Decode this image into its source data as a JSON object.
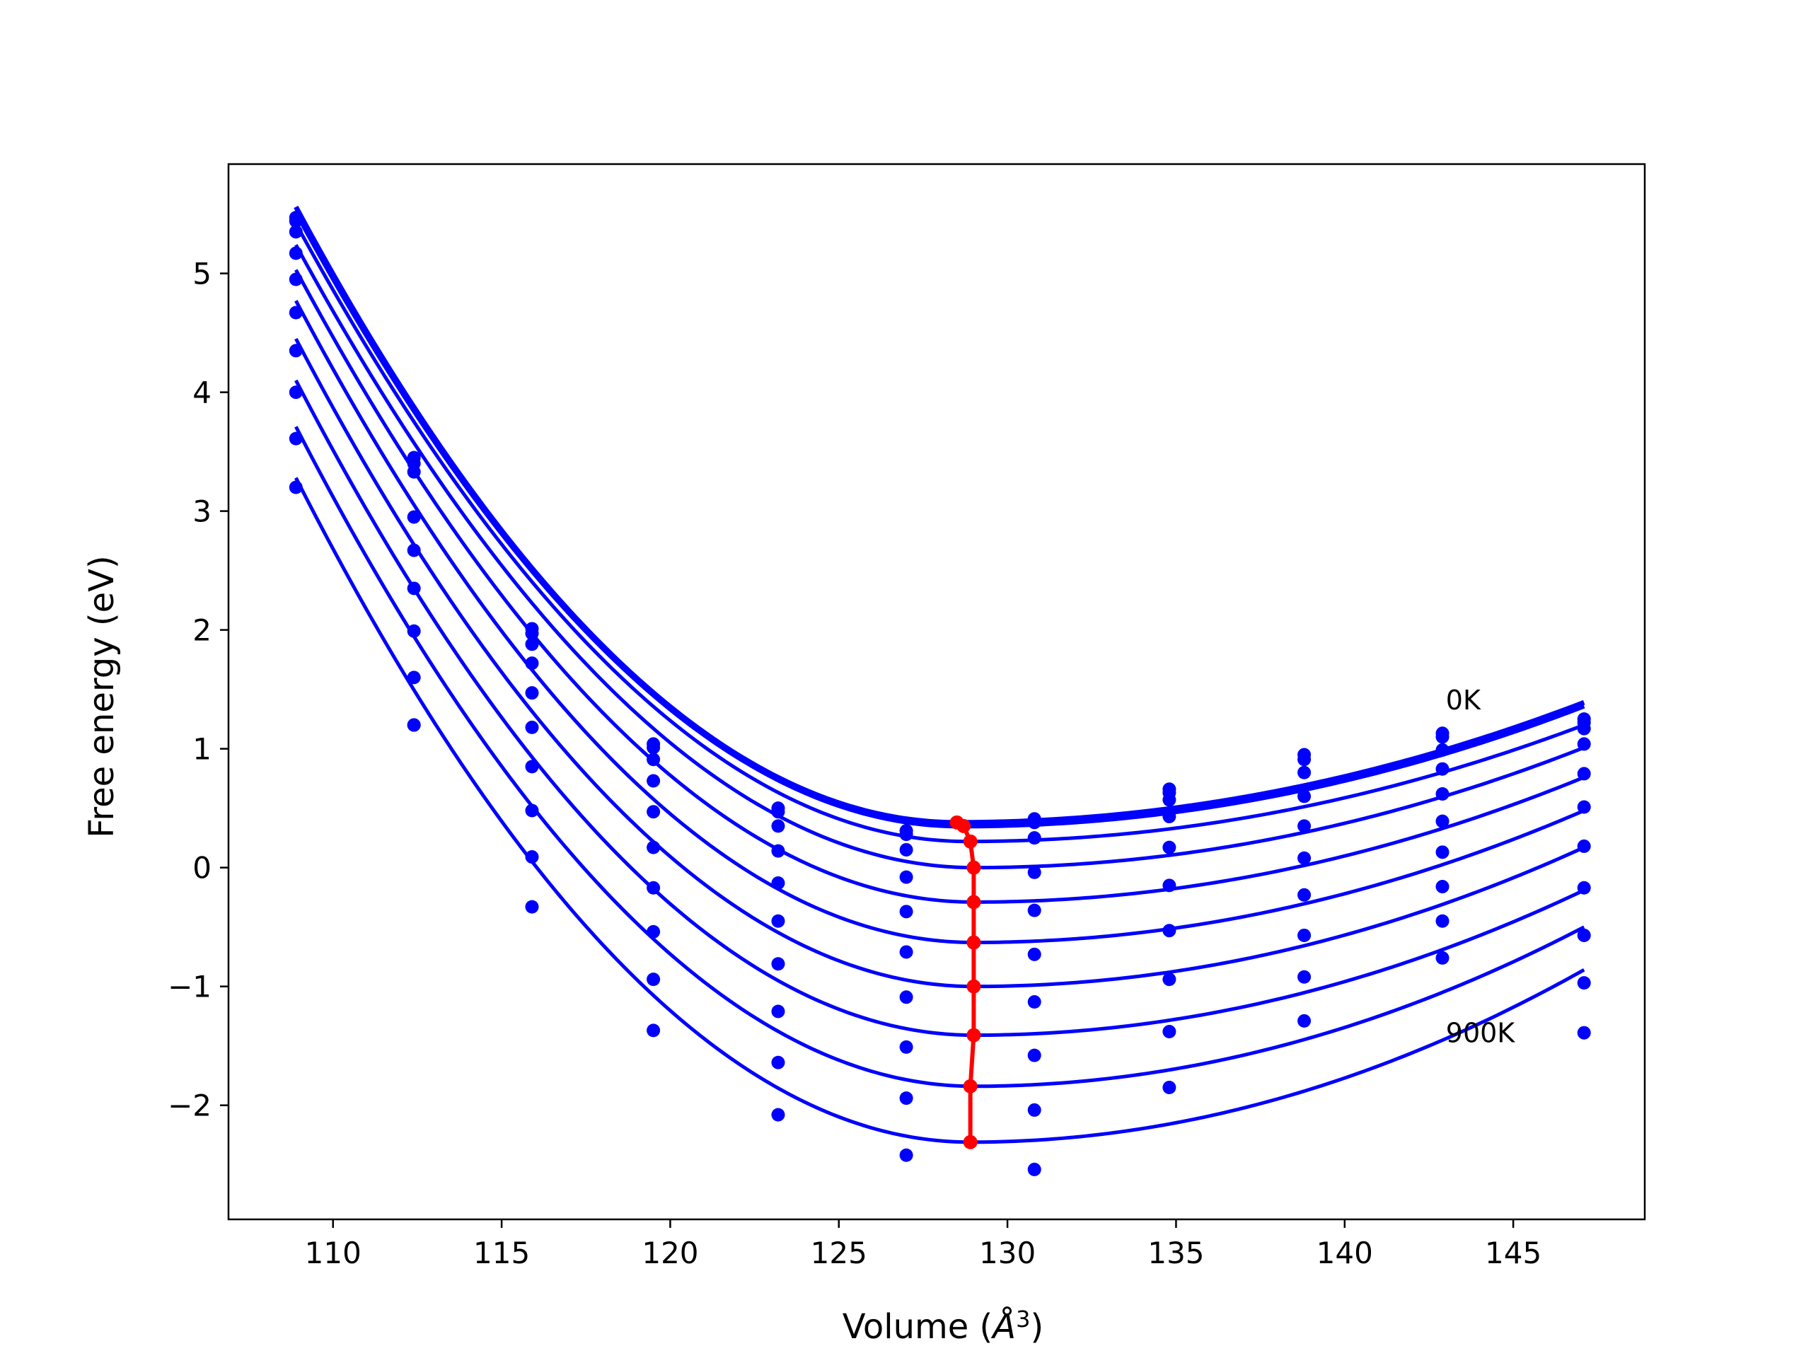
{
  "chart_data": {
    "type": "line",
    "title": "",
    "xlabel": "Volume (",
    "xlabel_symbol": "Å",
    "xlabel_exp": "3",
    "xlabel_close": ")",
    "ylabel": "Free energy (eV)",
    "xlim": [
      106.9,
      148.9
    ],
    "ylim": [
      -2.96,
      5.92
    ],
    "xticks": [
      110,
      115,
      120,
      125,
      130,
      135,
      140,
      145
    ],
    "xtick_labels": [
      "110",
      "115",
      "120",
      "125",
      "130",
      "135",
      "140",
      "145"
    ],
    "yticks": [
      -2,
      -1,
      0,
      1,
      2,
      3,
      4,
      5
    ],
    "ytick_labels": [
      "−2",
      "−1",
      "0",
      "1",
      "2",
      "3",
      "4",
      "5"
    ],
    "grid": false,
    "legend": "none",
    "colors": {
      "curves": "#0000ff",
      "minimum": "#ff0000"
    },
    "volumes": [
      108.9,
      112.4,
      115.9,
      119.5,
      123.2,
      127.0,
      130.8,
      134.8,
      138.8,
      142.9,
      147.1
    ],
    "series": [
      {
        "temp": 0,
        "scatter": [
          5.47,
          3.45,
          2.01,
          1.04,
          0.5,
          0.31,
          0.41,
          0.66,
          0.95,
          1.13,
          1.25
        ],
        "fit": {
          "v0": 128.5,
          "e0": 0.38,
          "left_end": 5.56,
          "right_end": 1.39
        }
      },
      {
        "temp": 100,
        "scatter": [
          5.44,
          3.4,
          1.97,
          1.01,
          0.47,
          0.28,
          0.38,
          0.63,
          0.91,
          1.1,
          1.22
        ],
        "fit": {
          "v0": 128.6,
          "e0": 0.35,
          "left_end": 5.52,
          "right_end": 1.36
        }
      },
      {
        "temp": 200,
        "scatter": [
          5.35,
          3.33,
          1.88,
          0.91,
          0.35,
          0.15,
          0.25,
          0.57,
          0.8,
          0.99,
          1.17
        ],
        "fit": {
          "v0": 128.8,
          "e0": 0.22,
          "left_end": 5.42,
          "right_end": 1.2
        }
      },
      {
        "temp": 300,
        "scatter": [
          5.17,
          2.95,
          1.72,
          0.73,
          0.14,
          -0.08,
          -0.04,
          0.43,
          0.6,
          0.83,
          1.04
        ],
        "fit": {
          "v0": 129.0,
          "e0": 0.0,
          "left_end": 5.24,
          "right_end": 1.01
        }
      },
      {
        "temp": 400,
        "scatter": [
          4.95,
          2.67,
          1.47,
          0.47,
          -0.13,
          -0.37,
          -0.36,
          0.17,
          0.35,
          0.62,
          0.79
        ],
        "fit": {
          "v0": 129.0,
          "e0": -0.29,
          "left_end": 5.03,
          "right_end": 0.76
        }
      },
      {
        "temp": 500,
        "scatter": [
          4.67,
          2.35,
          1.18,
          0.17,
          -0.45,
          -0.71,
          -0.73,
          -0.15,
          0.08,
          0.39,
          0.51
        ],
        "fit": {
          "v0": 129.0,
          "e0": -0.63,
          "left_end": 4.77,
          "right_end": 0.48
        }
      },
      {
        "temp": 600,
        "scatter": [
          4.35,
          1.99,
          0.85,
          -0.17,
          -0.81,
          -1.09,
          -1.13,
          -0.53,
          -0.23,
          0.13,
          0.18
        ],
        "fit": {
          "v0": 129.0,
          "e0": -1.0,
          "left_end": 4.45,
          "right_end": 0.17
        }
      },
      {
        "temp": 700,
        "scatter": [
          4.0,
          1.6,
          0.48,
          -0.54,
          -1.21,
          -1.51,
          -1.58,
          -0.94,
          -0.57,
          -0.16,
          -0.17
        ],
        "fit": {
          "v0": 129.0,
          "e0": -1.41,
          "left_end": 4.1,
          "right_end": -0.19
        }
      },
      {
        "temp": 800,
        "scatter": [
          3.61,
          1.2,
          0.09,
          -0.94,
          -1.64,
          -1.94,
          -2.04,
          -1.38,
          -0.92,
          -0.45,
          -0.57
        ],
        "fit": {
          "v0": 129.0,
          "e0": -1.84,
          "left_end": 3.71,
          "right_end": -0.5
        }
      },
      {
        "temp": 900,
        "scatter": [
          3.2,
          1.2,
          -0.33,
          -1.37,
          -2.08,
          -2.42,
          -2.54,
          -1.85,
          -1.29,
          -0.76,
          -0.97
        ],
        "fit": {
          "v0": 128.9,
          "e0": -2.31,
          "left_end": 3.28,
          "right_end": -0.86
        }
      }
    ],
    "extra_point_at_147": [
      -1.39
    ],
    "minimum_path": {
      "v": [
        128.5,
        128.7,
        128.9,
        129.0,
        129.0,
        129.0,
        129.0,
        129.0,
        128.9,
        128.9
      ],
      "e": [
        0.38,
        0.35,
        0.22,
        0.0,
        -0.29,
        -0.63,
        -1.0,
        -1.41,
        -1.84,
        -2.31
      ]
    },
    "annotations": [
      {
        "text": "0K",
        "v": 143.0,
        "e": 1.33
      },
      {
        "text": "900K",
        "v": 143.0,
        "e": -1.47
      }
    ]
  }
}
